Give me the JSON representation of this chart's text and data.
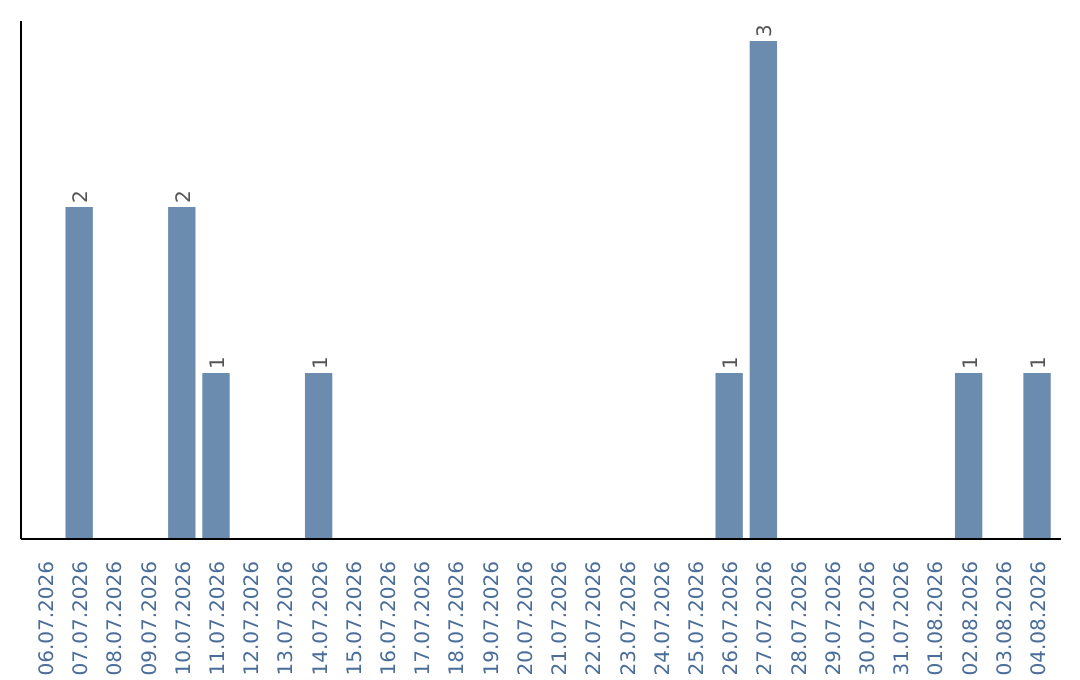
{
  "chart_data": {
    "type": "bar",
    "categories": [
      "06.07.2026",
      "07.07.2026",
      "08.07.2026",
      "09.07.2026",
      "10.07.2026",
      "11.07.2026",
      "12.07.2026",
      "13.07.2026",
      "14.07.2026",
      "15.07.2026",
      "16.07.2026",
      "17.07.2026",
      "18.07.2026",
      "19.07.2026",
      "20.07.2026",
      "21.07.2026",
      "22.07.2026",
      "23.07.2026",
      "24.07.2026",
      "25.07.2026",
      "26.07.2026",
      "27.07.2026",
      "28.07.2026",
      "29.07.2026",
      "30.07.2026",
      "31.07.2026",
      "01.08.2026",
      "02.08.2026",
      "03.08.2026",
      "04.08.2026"
    ],
    "values": [
      0,
      2,
      0,
      0,
      2,
      1,
      0,
      0,
      1,
      0,
      0,
      0,
      0,
      0,
      0,
      0,
      0,
      0,
      0,
      0,
      1,
      3,
      0,
      0,
      0,
      0,
      0,
      1,
      0,
      1
    ],
    "value_labels": [
      null,
      "2",
      null,
      null,
      "2",
      "1",
      null,
      null,
      "1",
      null,
      null,
      null,
      null,
      null,
      null,
      null,
      null,
      null,
      null,
      null,
      "1",
      "3",
      null,
      null,
      null,
      null,
      null,
      "1",
      null,
      "1"
    ],
    "color": "#6b8cae",
    "tick_labels": "x"
  }
}
